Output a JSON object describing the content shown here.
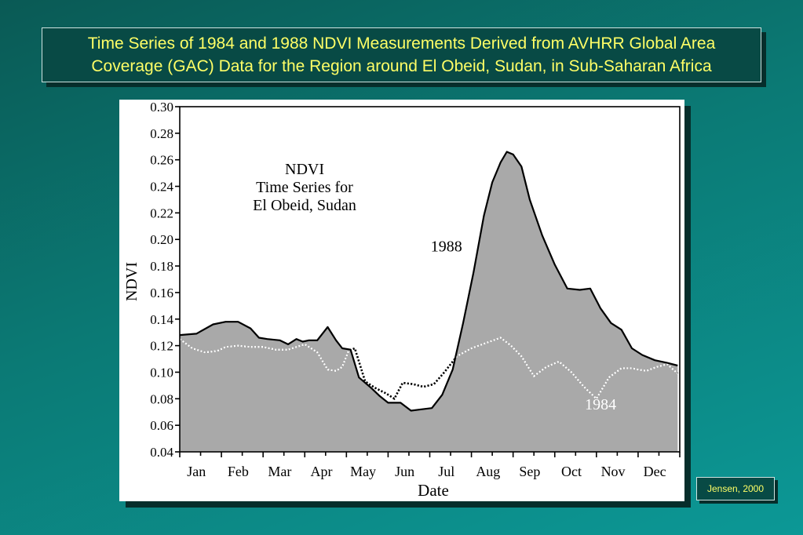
{
  "title": {
    "line1": "Time Series of 1984 and 1988 NDVI Measurements Derived from AVHRR Global Area",
    "line2": "Coverage (GAC) Data for the Region around El Obeid, Sudan, in Sub-Saharan Africa"
  },
  "credit": "Jensen, 2000",
  "colors": {
    "background": "#0b7a75",
    "title_text": "#ffff66",
    "fill_1988": "#a9a9a9",
    "line_1988": "#000000",
    "line_1984": "#ffffff"
  },
  "chart_data": {
    "type": "area",
    "xlabel": "Date",
    "ylabel": "NDVI",
    "ylim": [
      0.04,
      0.3
    ],
    "yticks": [
      "0.04",
      "0.06",
      "0.08",
      "0.10",
      "0.12",
      "0.14",
      "0.16",
      "0.18",
      "0.20",
      "0.22",
      "0.24",
      "0.26",
      "0.28",
      "0.30"
    ],
    "months": [
      "Jan",
      "Feb",
      "Mar",
      "Apr",
      "May",
      "Jun",
      "Jul",
      "Aug",
      "Sep",
      "Oct",
      "Nov",
      "Dec"
    ],
    "annotation": {
      "line1": "NDVI",
      "line2": "Time Series for",
      "line3": "El Obeid, Sudan"
    },
    "series": [
      {
        "name": "1988",
        "x": [
          0,
          0.4,
          0.8,
          1.1,
          1.4,
          1.7,
          1.9,
          2.1,
          2.4,
          2.6,
          2.8,
          2.95,
          3.1,
          3.3,
          3.55,
          3.75,
          3.9,
          4.1,
          4.3,
          4.6,
          4.8,
          5.0,
          5.3,
          5.55,
          5.8,
          6.05,
          6.3,
          6.55,
          6.8,
          7.05,
          7.3,
          7.5,
          7.7,
          7.85,
          8.0,
          8.2,
          8.4,
          8.7,
          9.0,
          9.3,
          9.6,
          9.85,
          10.1,
          10.35,
          10.6,
          10.85,
          11.1,
          11.4,
          11.7,
          11.95
        ],
        "y": [
          0.128,
          0.129,
          0.136,
          0.138,
          0.138,
          0.133,
          0.126,
          0.125,
          0.124,
          0.121,
          0.125,
          0.123,
          0.124,
          0.124,
          0.134,
          0.124,
          0.118,
          0.117,
          0.096,
          0.088,
          0.082,
          0.077,
          0.077,
          0.071,
          0.072,
          0.073,
          0.083,
          0.102,
          0.137,
          0.175,
          0.218,
          0.243,
          0.258,
          0.266,
          0.264,
          0.255,
          0.23,
          0.203,
          0.181,
          0.163,
          0.162,
          0.163,
          0.148,
          0.137,
          0.132,
          0.118,
          0.113,
          0.109,
          0.107,
          0.105
        ]
      },
      {
        "name": "1984",
        "x": [
          0,
          0.3,
          0.6,
          0.9,
          1.1,
          1.4,
          1.7,
          2.0,
          2.3,
          2.6,
          3.0,
          3.3,
          3.55,
          3.75,
          3.9,
          4.05,
          4.2,
          4.45,
          4.7,
          4.95,
          5.15,
          5.35,
          5.6,
          5.85,
          6.1,
          6.35,
          6.65,
          7.0,
          7.35,
          7.7,
          7.95,
          8.2,
          8.5,
          8.8,
          9.1,
          9.4,
          9.7,
          10.0,
          10.3,
          10.6,
          10.85,
          11.0,
          11.2,
          11.45,
          11.7,
          11.95
        ],
        "y": [
          0.125,
          0.118,
          0.115,
          0.116,
          0.119,
          0.12,
          0.119,
          0.119,
          0.117,
          0.117,
          0.121,
          0.115,
          0.102,
          0.101,
          0.104,
          0.116,
          0.118,
          0.093,
          0.088,
          0.084,
          0.08,
          0.092,
          0.091,
          0.089,
          0.091,
          0.1,
          0.112,
          0.118,
          0.122,
          0.126,
          0.12,
          0.112,
          0.097,
          0.104,
          0.108,
          0.1,
          0.089,
          0.08,
          0.096,
          0.103,
          0.103,
          0.102,
          0.101,
          0.104,
          0.106,
          0.099
        ]
      }
    ],
    "series_labels": [
      {
        "text": "1988",
        "x": 6.4,
        "y": 0.191
      },
      {
        "text": "1984",
        "x": 10.1,
        "y": 0.072
      }
    ]
  }
}
